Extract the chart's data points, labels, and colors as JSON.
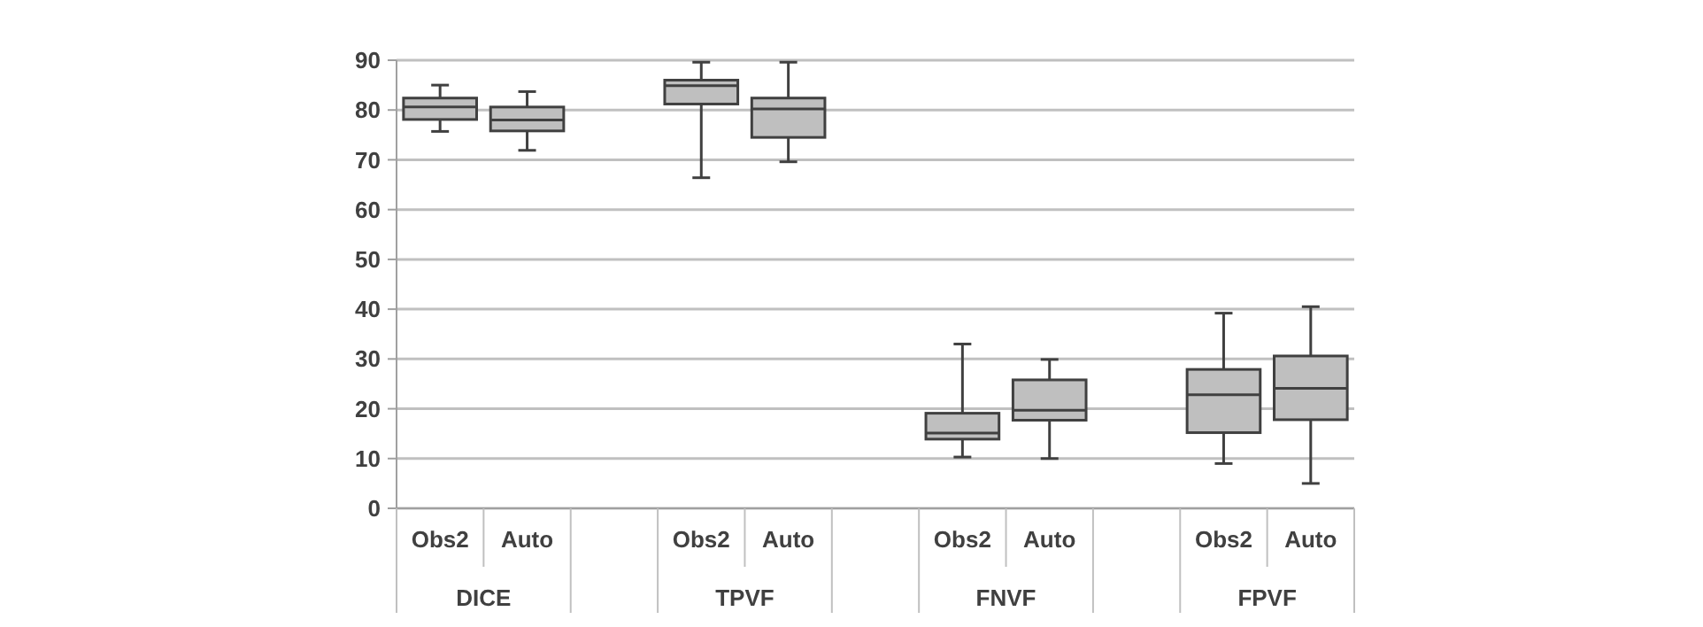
{
  "chart_data": {
    "type": "box",
    "categories": [
      "Obs2",
      "Auto",
      null,
      "Obs2",
      "Auto",
      null,
      "Obs2",
      "Auto",
      null,
      "Obs2",
      "Auto"
    ],
    "boxes": [
      {
        "low": 75.7,
        "q1": 78.1,
        "median": 80.6,
        "q3": 82.4,
        "high": 85
      },
      {
        "low": 71.9,
        "q1": 75.8,
        "median": 78,
        "q3": 80.6,
        "high": 83.7
      },
      null,
      {
        "low": 66.4,
        "q1": 81.2,
        "median": 84.9,
        "q3": 86,
        "high": 89.6
      },
      {
        "low": 69.6,
        "q1": 74.5,
        "median": 80.2,
        "q3": 82.4,
        "high": 89.6
      },
      null,
      {
        "low": 10.3,
        "q1": 13.9,
        "median": 15.1,
        "q3": 19.1,
        "high": 33
      },
      {
        "low": 10,
        "q1": 17.7,
        "median": 19.7,
        "q3": 25.8,
        "high": 29.9
      },
      null,
      {
        "low": 9,
        "q1": 15.2,
        "median": 22.8,
        "q3": 27.9,
        "high": 39.2
      },
      {
        "low": 5,
        "q1": 17.8,
        "median": 24.1,
        "q3": 30.6,
        "high": 40.5
      }
    ],
    "color": "#bfbfbf",
    "ylim": [
      0,
      90
    ],
    "yticks": [
      0,
      10,
      20,
      30,
      40,
      50,
      60,
      70,
      80,
      90
    ],
    "grid": "y",
    "annotations": [
      "DICE",
      "TPVF",
      "FNVF",
      "FPVF"
    ]
  }
}
